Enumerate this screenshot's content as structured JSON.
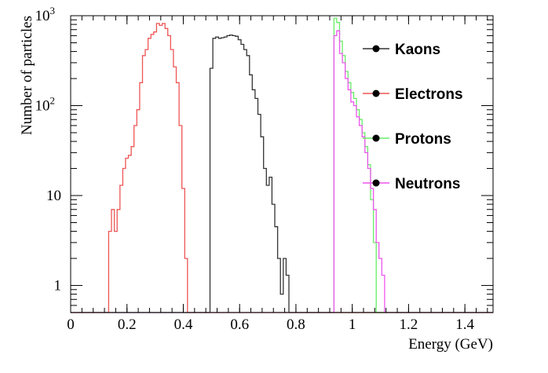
{
  "chart_data": {
    "type": "line",
    "subtype": "step-histogram",
    "title": "",
    "xlabel": "Energy (GeV)",
    "ylabel": "Number of particles",
    "xlim": [
      0,
      1.5
    ],
    "ylim": [
      0.5,
      1000
    ],
    "yscale": "log",
    "grid": false,
    "legend_position": "top-right",
    "x_ticks": [
      {
        "value": 0,
        "label": "0"
      },
      {
        "value": 0.2,
        "label": "0.2"
      },
      {
        "value": 0.4,
        "label": "0.4"
      },
      {
        "value": 0.6,
        "label": "0.6"
      },
      {
        "value": 0.8,
        "label": "0.8"
      },
      {
        "value": 1.0,
        "label": "1"
      },
      {
        "value": 1.2,
        "label": "1.2"
      },
      {
        "value": 1.4,
        "label": "1.4"
      }
    ],
    "y_ticks": [
      {
        "value": 1,
        "label": "1"
      },
      {
        "value": 10,
        "label": "10"
      },
      {
        "value": 100,
        "label": "10",
        "exponent": "2"
      },
      {
        "value": 1000,
        "label": "10",
        "exponent": "3"
      }
    ],
    "series": [
      {
        "name": "Kaons",
        "color": "#333333",
        "x": [
          0.49,
          0.495,
          0.505,
          0.515,
          0.525,
          0.535,
          0.545,
          0.555,
          0.565,
          0.575,
          0.585,
          0.595,
          0.605,
          0.615,
          0.625,
          0.635,
          0.645,
          0.655,
          0.665,
          0.675,
          0.685,
          0.695,
          0.705,
          0.715,
          0.725,
          0.735,
          0.745,
          0.755,
          0.765,
          0.775,
          0.785
        ],
        "y": [
          0.5,
          260,
          560,
          580,
          560,
          570,
          580,
          600,
          610,
          600,
          590,
          540,
          480,
          420,
          360,
          220,
          150,
          120,
          80,
          45,
          20,
          13,
          16,
          8,
          4.5,
          2,
          0.8,
          2,
          1.3,
          0.5,
          0.5
        ]
      },
      {
        "name": "Electrons",
        "color": "#ee5555",
        "x": [
          0.13,
          0.135,
          0.145,
          0.155,
          0.165,
          0.175,
          0.185,
          0.195,
          0.205,
          0.215,
          0.225,
          0.235,
          0.245,
          0.255,
          0.265,
          0.275,
          0.285,
          0.295,
          0.305,
          0.315,
          0.325,
          0.335,
          0.345,
          0.355,
          0.365,
          0.375,
          0.385,
          0.395,
          0.405,
          0.415,
          0.425,
          0.435
        ],
        "y": [
          0.5,
          4,
          7,
          4,
          7,
          13,
          20,
          26,
          28,
          35,
          60,
          90,
          180,
          360,
          420,
          560,
          620,
          660,
          820,
          780,
          820,
          720,
          600,
          420,
          270,
          180,
          60,
          12,
          2,
          0.5,
          0.5,
          0.5
        ]
      },
      {
        "name": "Protons",
        "color": "#66ee66",
        "x": [
          0.93,
          0.935,
          0.945,
          0.955,
          0.965,
          0.975,
          0.985,
          0.995,
          1.005,
          1.015,
          1.025,
          1.035,
          1.045,
          1.055,
          1.065,
          1.075,
          1.085,
          1.095,
          1.105,
          1.115,
          1.125,
          1.135,
          1.145,
          1.155
        ],
        "y": [
          0.5,
          940,
          840,
          520,
          360,
          240,
          180,
          140,
          120,
          90,
          70,
          50,
          35,
          22,
          9,
          3,
          0.5,
          0.5,
          0.5,
          0.5,
          0.5,
          0.5,
          0.5,
          0.5
        ]
      },
      {
        "name": "Neutrons",
        "color": "#ee55ee",
        "x": [
          0.93,
          0.935,
          0.945,
          0.955,
          0.965,
          0.975,
          0.985,
          0.995,
          1.005,
          1.015,
          1.025,
          1.035,
          1.045,
          1.055,
          1.065,
          1.075,
          1.085,
          1.095,
          1.105,
          1.115,
          1.125,
          1.135,
          1.145,
          1.155
        ],
        "y": [
          0.5,
          600,
          680,
          380,
          300,
          200,
          150,
          110,
          100,
          75,
          60,
          45,
          30,
          20,
          12,
          7,
          3,
          2,
          1.3,
          0.5,
          0.5,
          0.5,
          0.5,
          0.5
        ]
      }
    ]
  }
}
